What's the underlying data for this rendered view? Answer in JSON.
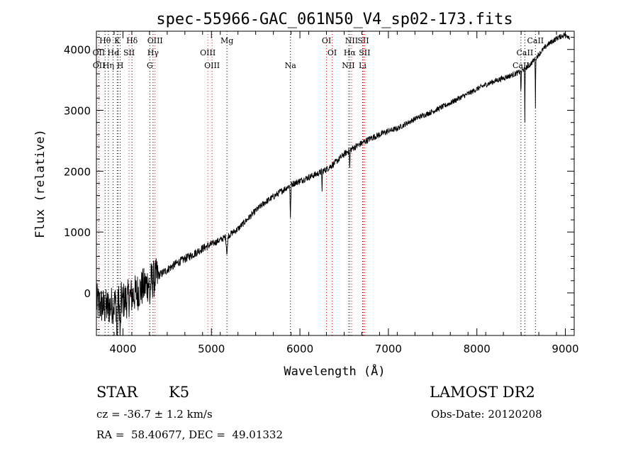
{
  "chart_data": {
    "type": "line",
    "title": "spec-55966-GAC_061N50_V4_sp02-173.fits",
    "xlabel": "Wavelength (Å)",
    "ylabel": "Flux (relative)",
    "xlim": [
      3700,
      9100
    ],
    "ylim": [
      -700,
      4300
    ],
    "xticks": [
      4000,
      5000,
      6000,
      7000,
      8000,
      9000
    ],
    "yticks": [
      0,
      1000,
      2000,
      3000,
      4000
    ],
    "grid": false,
    "series": [
      {
        "x": [
          3700,
          3750,
          3800,
          3850,
          3900,
          3950,
          4000,
          4050,
          4100,
          4150,
          4200,
          4250,
          4300,
          4350,
          4400,
          4500,
          4600,
          4700,
          4800,
          4900,
          5000,
          5100,
          5200,
          5300,
          5400,
          5500,
          5600,
          5700,
          5800,
          5900,
          6000,
          6100,
          6200,
          6300,
          6400,
          6500,
          6600,
          6700,
          6800,
          6900,
          7000,
          7100,
          7200,
          7300,
          7400,
          7500,
          7600,
          7700,
          7800,
          7900,
          8000,
          8100,
          8200,
          8300,
          8400,
          8500,
          8600,
          8700,
          8800,
          8900,
          9000,
          9050
        ],
        "y": [
          -150,
          -200,
          -250,
          -220,
          -180,
          -150,
          -130,
          -100,
          -50,
          0,
          60,
          120,
          180,
          230,
          280,
          380,
          480,
          560,
          640,
          730,
          800,
          870,
          950,
          1050,
          1200,
          1350,
          1480,
          1580,
          1680,
          1780,
          1840,
          1900,
          1960,
          2030,
          2140,
          2280,
          2380,
          2460,
          2540,
          2600,
          2660,
          2700,
          2780,
          2860,
          2920,
          2980,
          3050,
          3120,
          3200,
          3270,
          3350,
          3420,
          3480,
          3530,
          3580,
          3640,
          3750,
          3920,
          4080,
          4180,
          4250,
          4200
        ]
      }
    ],
    "line_markers": [
      {
        "label": "Hθ",
        "x": 3798,
        "row": 0,
        "color": "#000000"
      },
      {
        "label": "K",
        "x": 3934,
        "row": 0,
        "color": "#000000"
      },
      {
        "label": "Hδ",
        "x": 4102,
        "row": 0,
        "color": "#000000"
      },
      {
        "label": "OIII",
        "x": 4363,
        "row": 0,
        "color": "#ff0000"
      },
      {
        "label": "Mg",
        "x": 5175,
        "row": 0,
        "color": "#000000"
      },
      {
        "label": "OI",
        "x": 6300,
        "row": 0,
        "color": "#ff0000"
      },
      {
        "label": "NII",
        "x": 6584,
        "row": 0,
        "color": "#ff0000"
      },
      {
        "label": "SII",
        "x": 6716,
        "row": 0,
        "color": "#ff0000"
      },
      {
        "label": "CaII",
        "x": 8662,
        "row": 0,
        "color": "#000000"
      },
      {
        "label": "OII",
        "x": 3727,
        "row": 1,
        "color": "#ff0000"
      },
      {
        "label": "He",
        "x": 3889,
        "row": 1,
        "color": "#000000"
      },
      {
        "label": "I",
        "x": 3945,
        "row": 1,
        "color": "#000000"
      },
      {
        "label": "SII",
        "x": 4069,
        "row": 1,
        "color": "#ff0000"
      },
      {
        "label": "Hγ",
        "x": 4340,
        "row": 1,
        "color": "#000000"
      },
      {
        "label": "OIII",
        "x": 4959,
        "row": 1,
        "color": "#ff0000"
      },
      {
        "label": "OI",
        "x": 6364,
        "row": 1,
        "color": "#ff0000"
      },
      {
        "label": "Hα",
        "x": 6563,
        "row": 1,
        "color": "#000000"
      },
      {
        "label": "SII",
        "x": 6731,
        "row": 1,
        "color": "#ff0000"
      },
      {
        "label": "CaII",
        "x": 8542,
        "row": 1,
        "color": "#000000"
      },
      {
        "label": "OII",
        "x": 3729,
        "row": 2,
        "color": "#ff0000"
      },
      {
        "label": "Hη",
        "x": 3835,
        "row": 2,
        "color": "#000000"
      },
      {
        "label": "H",
        "x": 3969,
        "row": 2,
        "color": "#000000"
      },
      {
        "label": "G",
        "x": 4304,
        "row": 2,
        "color": "#000000"
      },
      {
        "label": "OIII",
        "x": 5007,
        "row": 2,
        "color": "#ff0000"
      },
      {
        "label": "Na",
        "x": 5893,
        "row": 2,
        "color": "#000000"
      },
      {
        "label": "NII",
        "x": 6548,
        "row": 2,
        "color": "#ff0000"
      },
      {
        "label": "Li",
        "x": 6708,
        "row": 2,
        "color": "#000000"
      },
      {
        "label": "CaII",
        "x": 8498,
        "row": 2,
        "color": "#000000"
      }
    ]
  },
  "info": {
    "object_class": "STAR",
    "subclass": "K5",
    "survey": "LAMOST DR2",
    "redshift_text": "cz = -36.7 ± 1.2 km/s",
    "obs_date_text": "Obs-Date: 20120208",
    "coords_text": "RA =  58.40677, DEC =  49.01332"
  }
}
